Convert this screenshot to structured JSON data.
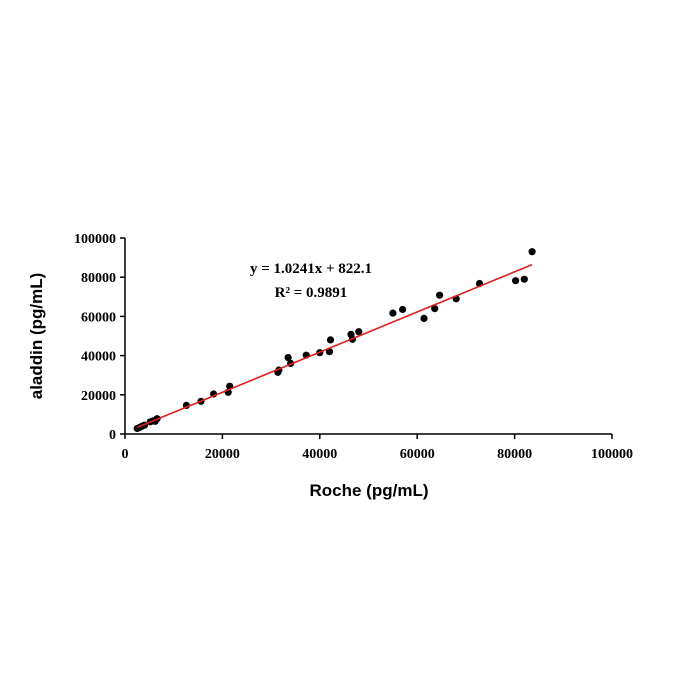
{
  "chart_data": {
    "type": "scatter",
    "title": "",
    "xlabel": "Roche (pg/mL)",
    "ylabel": "aladdin (pg/mL)",
    "xlim": [
      0,
      100000
    ],
    "ylim": [
      0,
      100000
    ],
    "x_ticks": [
      "0",
      "20000",
      "40000",
      "60000",
      "80000",
      "100000"
    ],
    "y_ticks": [
      "0",
      "20000",
      "40000",
      "60000",
      "80000",
      "100000"
    ],
    "grid": false,
    "series": [
      {
        "color": "#000000",
        "points": [
          [
            2500,
            2800
          ],
          [
            3000,
            3300
          ],
          [
            3500,
            4000
          ],
          [
            4000,
            4500
          ],
          [
            5200,
            6200
          ],
          [
            5800,
            6700
          ],
          [
            6200,
            6500
          ],
          [
            6600,
            7800
          ],
          [
            12600,
            14600
          ],
          [
            15600,
            16700
          ],
          [
            18200,
            20400
          ],
          [
            21200,
            21300
          ],
          [
            21500,
            24400
          ],
          [
            31400,
            31500
          ],
          [
            31600,
            32600
          ],
          [
            33500,
            39000
          ],
          [
            34000,
            36000
          ],
          [
            37200,
            40200
          ],
          [
            40000,
            41500
          ],
          [
            42000,
            42000
          ],
          [
            42200,
            48000
          ],
          [
            46400,
            50800
          ],
          [
            46700,
            48300
          ],
          [
            48000,
            52200
          ],
          [
            55000,
            61700
          ],
          [
            57000,
            63500
          ],
          [
            61400,
            59000
          ],
          [
            63600,
            64000
          ],
          [
            64600,
            70800
          ],
          [
            68000,
            69000
          ],
          [
            72800,
            76800
          ],
          [
            80200,
            78200
          ],
          [
            82000,
            79000
          ],
          [
            83600,
            93000
          ]
        ]
      }
    ],
    "trendline": {
      "color": "#e02020",
      "slope": 1.0241,
      "intercept": 822.1,
      "x_range": [
        2500,
        83600
      ],
      "equation": "y = 1.0241x + 822.1",
      "r_squared": "R² = 0.9891"
    }
  }
}
